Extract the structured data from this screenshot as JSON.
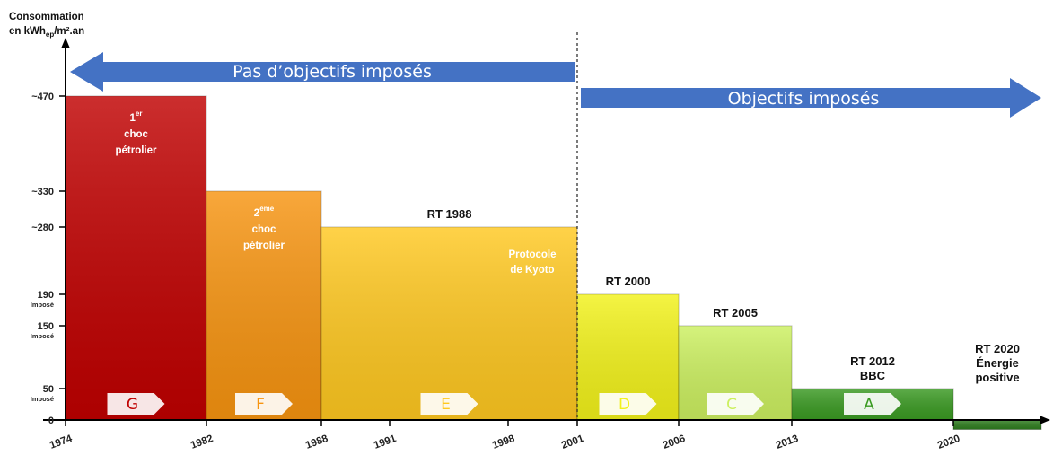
{
  "chart_data": {
    "type": "bar",
    "ylabel_line1": "Consommation",
    "ylabel_line2_main": "en kWh",
    "ylabel_line2_sub": "ep",
    "ylabel_line2_end": "/m².an",
    "y_ticks": [
      {
        "label": "~470",
        "value": 470,
        "sub": ""
      },
      {
        "label": "~330",
        "value": 330,
        "sub": ""
      },
      {
        "label": "~280",
        "value": 280,
        "sub": ""
      },
      {
        "label": "190",
        "value": 190,
        "sub": "Imposé"
      },
      {
        "label": "150",
        "value": 150,
        "sub": "Imposé"
      },
      {
        "label": "50",
        "value": 50,
        "sub": "Imposé"
      },
      {
        "label": "0",
        "value": 0,
        "sub": ""
      }
    ],
    "x_ticks": [
      "1974",
      "1982",
      "1988",
      "1991",
      "1998",
      "2001",
      "2006",
      "2013",
      "2020"
    ],
    "arrows": {
      "left": "Pas d’objectifs imposés",
      "right": "Objectifs imposés",
      "left_color": "#4472c4",
      "right_color": "#4472c4"
    },
    "bars": [
      {
        "x_start": 1974,
        "x_end": 1982,
        "value": 470,
        "color": "#c00000",
        "letter": "G",
        "label_lines": [
          "1er",
          "choc",
          "pétrolier"
        ],
        "label_style": "white"
      },
      {
        "x_start": 1982,
        "x_end": 1988,
        "value": 330,
        "color": "#f79410",
        "letter": "F",
        "label_lines": [
          "2ème",
          "choc",
          "pétrolier"
        ],
        "label_style": "white"
      },
      {
        "x_start": 1988,
        "x_end": 2001,
        "value": 280,
        "color": "#ffc820",
        "letter": "E",
        "label_lines": [
          "RT 1988"
        ],
        "label_style": "dark",
        "note_lines": [
          "Protocole",
          "de Kyoto"
        ]
      },
      {
        "x_start": 2001,
        "x_end": 2006,
        "value": 190,
        "color": "#f2f21a",
        "letter": "D",
        "label_lines": [
          "RT 2000"
        ],
        "label_style": "dark"
      },
      {
        "x_start": 2006,
        "x_end": 2013,
        "value": 150,
        "color": "#ccf060",
        "letter": "C",
        "label_lines": [
          "RT 2005"
        ],
        "label_style": "dark"
      },
      {
        "x_start": 2013,
        "x_end": 2020,
        "value": 50,
        "color": "#3a9a22",
        "letter": "A",
        "label_lines": [
          "RT 2012",
          "BBC"
        ],
        "label_style": "dark"
      },
      {
        "x_start": 2020,
        "x_end": 2024,
        "value": -15,
        "color": "#2e7d1e",
        "letter": "",
        "label_lines": [
          "RT 2020",
          "Énergie",
          "positive"
        ],
        "label_style": "dark"
      }
    ]
  }
}
